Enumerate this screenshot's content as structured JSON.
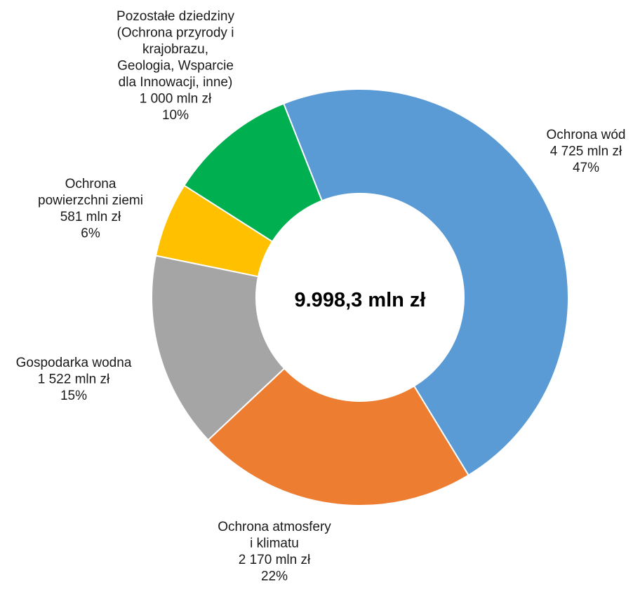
{
  "chart_data": {
    "type": "pie",
    "variant": "donut",
    "center_label": "9.998,3 mln zł",
    "grid": false,
    "legend": "none",
    "slices": [
      {
        "label_lines": [
          "Ochrona wód"
        ],
        "value": 4725,
        "value_label": "4 725 mln zł",
        "percent_label": "47%",
        "color": "#5B9BD5"
      },
      {
        "label_lines": [
          "Ochrona atmosfery",
          "i klimatu"
        ],
        "value": 2170,
        "value_label": "2 170 mln zł",
        "percent_label": "22%",
        "color": "#ED7D31"
      },
      {
        "label_lines": [
          "Gospodarka wodna"
        ],
        "value": 1522,
        "value_label": "1 522 mln zł",
        "percent_label": "15%",
        "color": "#A5A5A5"
      },
      {
        "label_lines": [
          "Ochrona",
          "powierzchni ziemi"
        ],
        "value": 581,
        "value_label": "581 mln zł",
        "percent_label": "6%",
        "color": "#FFC000"
      },
      {
        "label_lines": [
          "Pozostałe dziedziny",
          "(Ochrona przyrody i",
          "krajobrazu,",
          "Geologia, Wsparcie",
          "dla Innowacji, inne)"
        ],
        "value": 1000,
        "value_label": "1 000 mln zł",
        "percent_label": "10%",
        "color": "#00B050"
      }
    ]
  }
}
